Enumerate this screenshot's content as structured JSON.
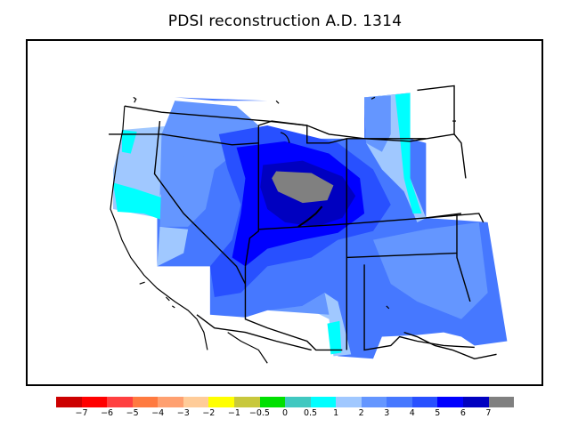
{
  "title": "PDSI reconstruction A.D. 1314",
  "legend": {
    "colors": [
      "#cc0000",
      "#ff0000",
      "#ff4040",
      "#ff7a40",
      "#ffa070",
      "#ffcc99",
      "#ffff00",
      "#c8c83c",
      "#00e000",
      "#40c8c0",
      "#00ffff",
      "#a0c8ff",
      "#6496ff",
      "#4678ff",
      "#2850ff",
      "#0000ff",
      "#0000c0",
      "#808080"
    ],
    "labels": [
      "−7",
      "−6",
      "−5",
      "−4",
      "−3",
      "−2",
      "−1",
      "−0.5",
      "0",
      "0.5",
      "1",
      "2",
      "3",
      "4",
      "5",
      "6",
      "7"
    ]
  },
  "map": {
    "region": "Western United States",
    "palette": {
      "cyan": "#00ffff",
      "light_blue": "#a0c8ff",
      "blue_3": "#6496ff",
      "blue_4": "#4678ff",
      "blue_5": "#2850ff",
      "blue_6": "#0000ff",
      "blue_7": "#0000c0",
      "missing": "#808080"
    }
  }
}
